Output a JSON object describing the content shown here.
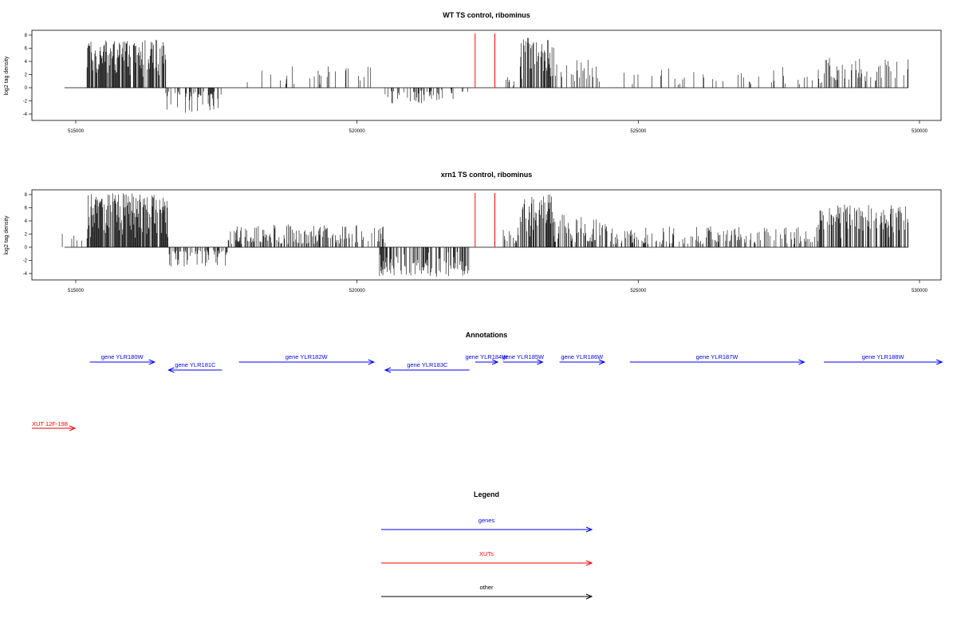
{
  "colors": {
    "gene": "#0000ff",
    "xut": "#ff0000",
    "other": "#000000",
    "marker": "#ff0000"
  },
  "chart_data": [
    {
      "type": "bar",
      "title": "WT TS control, ribominus",
      "ylabel": "log2 tag density",
      "xlim": [
        514800,
        530000
      ],
      "ylim": [
        -5,
        9
      ],
      "xticks": [
        515000,
        520000,
        525000,
        530000
      ],
      "yticks": [
        -4,
        -2,
        0,
        2,
        4,
        6,
        8
      ],
      "xtick_labels": [
        "515000",
        "520000",
        "525000",
        "530000"
      ],
      "ytick_labels": [
        "-4",
        "-2",
        "0",
        "2",
        "4",
        "6",
        "8"
      ],
      "marker_lines": [
        522100,
        522450
      ],
      "signal_segments": [
        {
          "start": 515200,
          "end": 516600,
          "sign": 1,
          "max": 7.3,
          "density": 0.8
        },
        {
          "start": 516600,
          "end": 517600,
          "sign": -1,
          "max": 3.8,
          "density": 0.4
        },
        {
          "start": 517900,
          "end": 520300,
          "sign": 1,
          "max": 3.5,
          "density": 0.1
        },
        {
          "start": 520450,
          "end": 521350,
          "sign": -1,
          "max": 2.5,
          "density": 0.4
        },
        {
          "start": 521350,
          "end": 522000,
          "sign": -1,
          "max": 2.0,
          "density": 0.2
        },
        {
          "start": 522650,
          "end": 522800,
          "sign": 1,
          "max": 2.0,
          "density": 0.3
        },
        {
          "start": 522900,
          "end": 523500,
          "sign": 1,
          "max": 7.6,
          "density": 0.75
        },
        {
          "start": 523500,
          "end": 524300,
          "sign": 1,
          "max": 4.5,
          "density": 0.25
        },
        {
          "start": 524300,
          "end": 528200,
          "sign": 1,
          "max": 3.2,
          "density": 0.08
        },
        {
          "start": 528200,
          "end": 529800,
          "sign": 1,
          "max": 4.6,
          "density": 0.25
        }
      ]
    },
    {
      "type": "bar",
      "title": "xrn1 TS control, ribominus",
      "ylabel": "log2 tag density",
      "xlim": [
        514800,
        530000
      ],
      "ylim": [
        -5,
        9
      ],
      "xticks": [
        515000,
        520000,
        525000,
        530000
      ],
      "yticks": [
        -4,
        -2,
        0,
        2,
        4,
        6,
        8
      ],
      "xtick_labels": [
        "515000",
        "520000",
        "525000",
        "530000"
      ],
      "ytick_labels": [
        "-4",
        "-2",
        "0",
        "2",
        "4",
        "6",
        "8"
      ],
      "marker_lines": [
        522100,
        522450
      ],
      "signal_segments": [
        {
          "start": 514750,
          "end": 515150,
          "sign": 1,
          "max": 2.6,
          "density": 0.12
        },
        {
          "start": 515200,
          "end": 516650,
          "sign": 1,
          "max": 8.2,
          "density": 0.9
        },
        {
          "start": 516650,
          "end": 517700,
          "sign": -1,
          "max": 3.0,
          "density": 0.45
        },
        {
          "start": 517700,
          "end": 520500,
          "sign": 1,
          "max": 3.5,
          "density": 0.45
        },
        {
          "start": 520400,
          "end": 522000,
          "sign": -1,
          "max": 4.5,
          "density": 0.55
        },
        {
          "start": 522600,
          "end": 522900,
          "sign": 1,
          "max": 3.2,
          "density": 0.4
        },
        {
          "start": 522900,
          "end": 523500,
          "sign": 1,
          "max": 8.0,
          "density": 0.8
        },
        {
          "start": 523500,
          "end": 524450,
          "sign": 1,
          "max": 5.0,
          "density": 0.5
        },
        {
          "start": 524450,
          "end": 528200,
          "sign": 1,
          "max": 3.2,
          "density": 0.35
        },
        {
          "start": 528200,
          "end": 529800,
          "sign": 1,
          "max": 6.5,
          "density": 0.55
        }
      ]
    }
  ],
  "annotations": {
    "title": "Annotations",
    "genes": [
      {
        "label": "gene YLR180W",
        "start": 515250,
        "end": 516400,
        "strand": "+",
        "row": 0
      },
      {
        "label": "gene YLR181C",
        "start": 516650,
        "end": 517600,
        "strand": "-",
        "row": 1
      },
      {
        "label": "gene YLR182W",
        "start": 517900,
        "end": 520300,
        "strand": "+",
        "row": 0
      },
      {
        "label": "gene YLR183C",
        "start": 520500,
        "end": 522000,
        "strand": "-",
        "row": 1
      },
      {
        "label": "gene YLR184W",
        "start": 522100,
        "end": 522500,
        "strand": "+",
        "row": 0
      },
      {
        "label": "gene YLR185W",
        "start": 522600,
        "end": 523300,
        "strand": "+",
        "row": 0
      },
      {
        "label": "gene YLR186W",
        "start": 523600,
        "end": 524400,
        "strand": "+",
        "row": 0
      },
      {
        "label": "gene YLR187W",
        "start": 524850,
        "end": 527950,
        "strand": "+",
        "row": 0
      },
      {
        "label": "gene YLR188W",
        "start": 528300,
        "end": 530400,
        "strand": "+",
        "row": 0
      }
    ],
    "xuts": [
      {
        "label": "XUT 12F-198",
        "start": 514600,
        "end": 515350,
        "strand": "+"
      }
    ]
  },
  "legend": {
    "title": "Legend",
    "items": [
      {
        "label": "genes",
        "kind": "gene"
      },
      {
        "label": "XUTs",
        "kind": "xut"
      },
      {
        "label": "other",
        "kind": "other"
      }
    ]
  }
}
